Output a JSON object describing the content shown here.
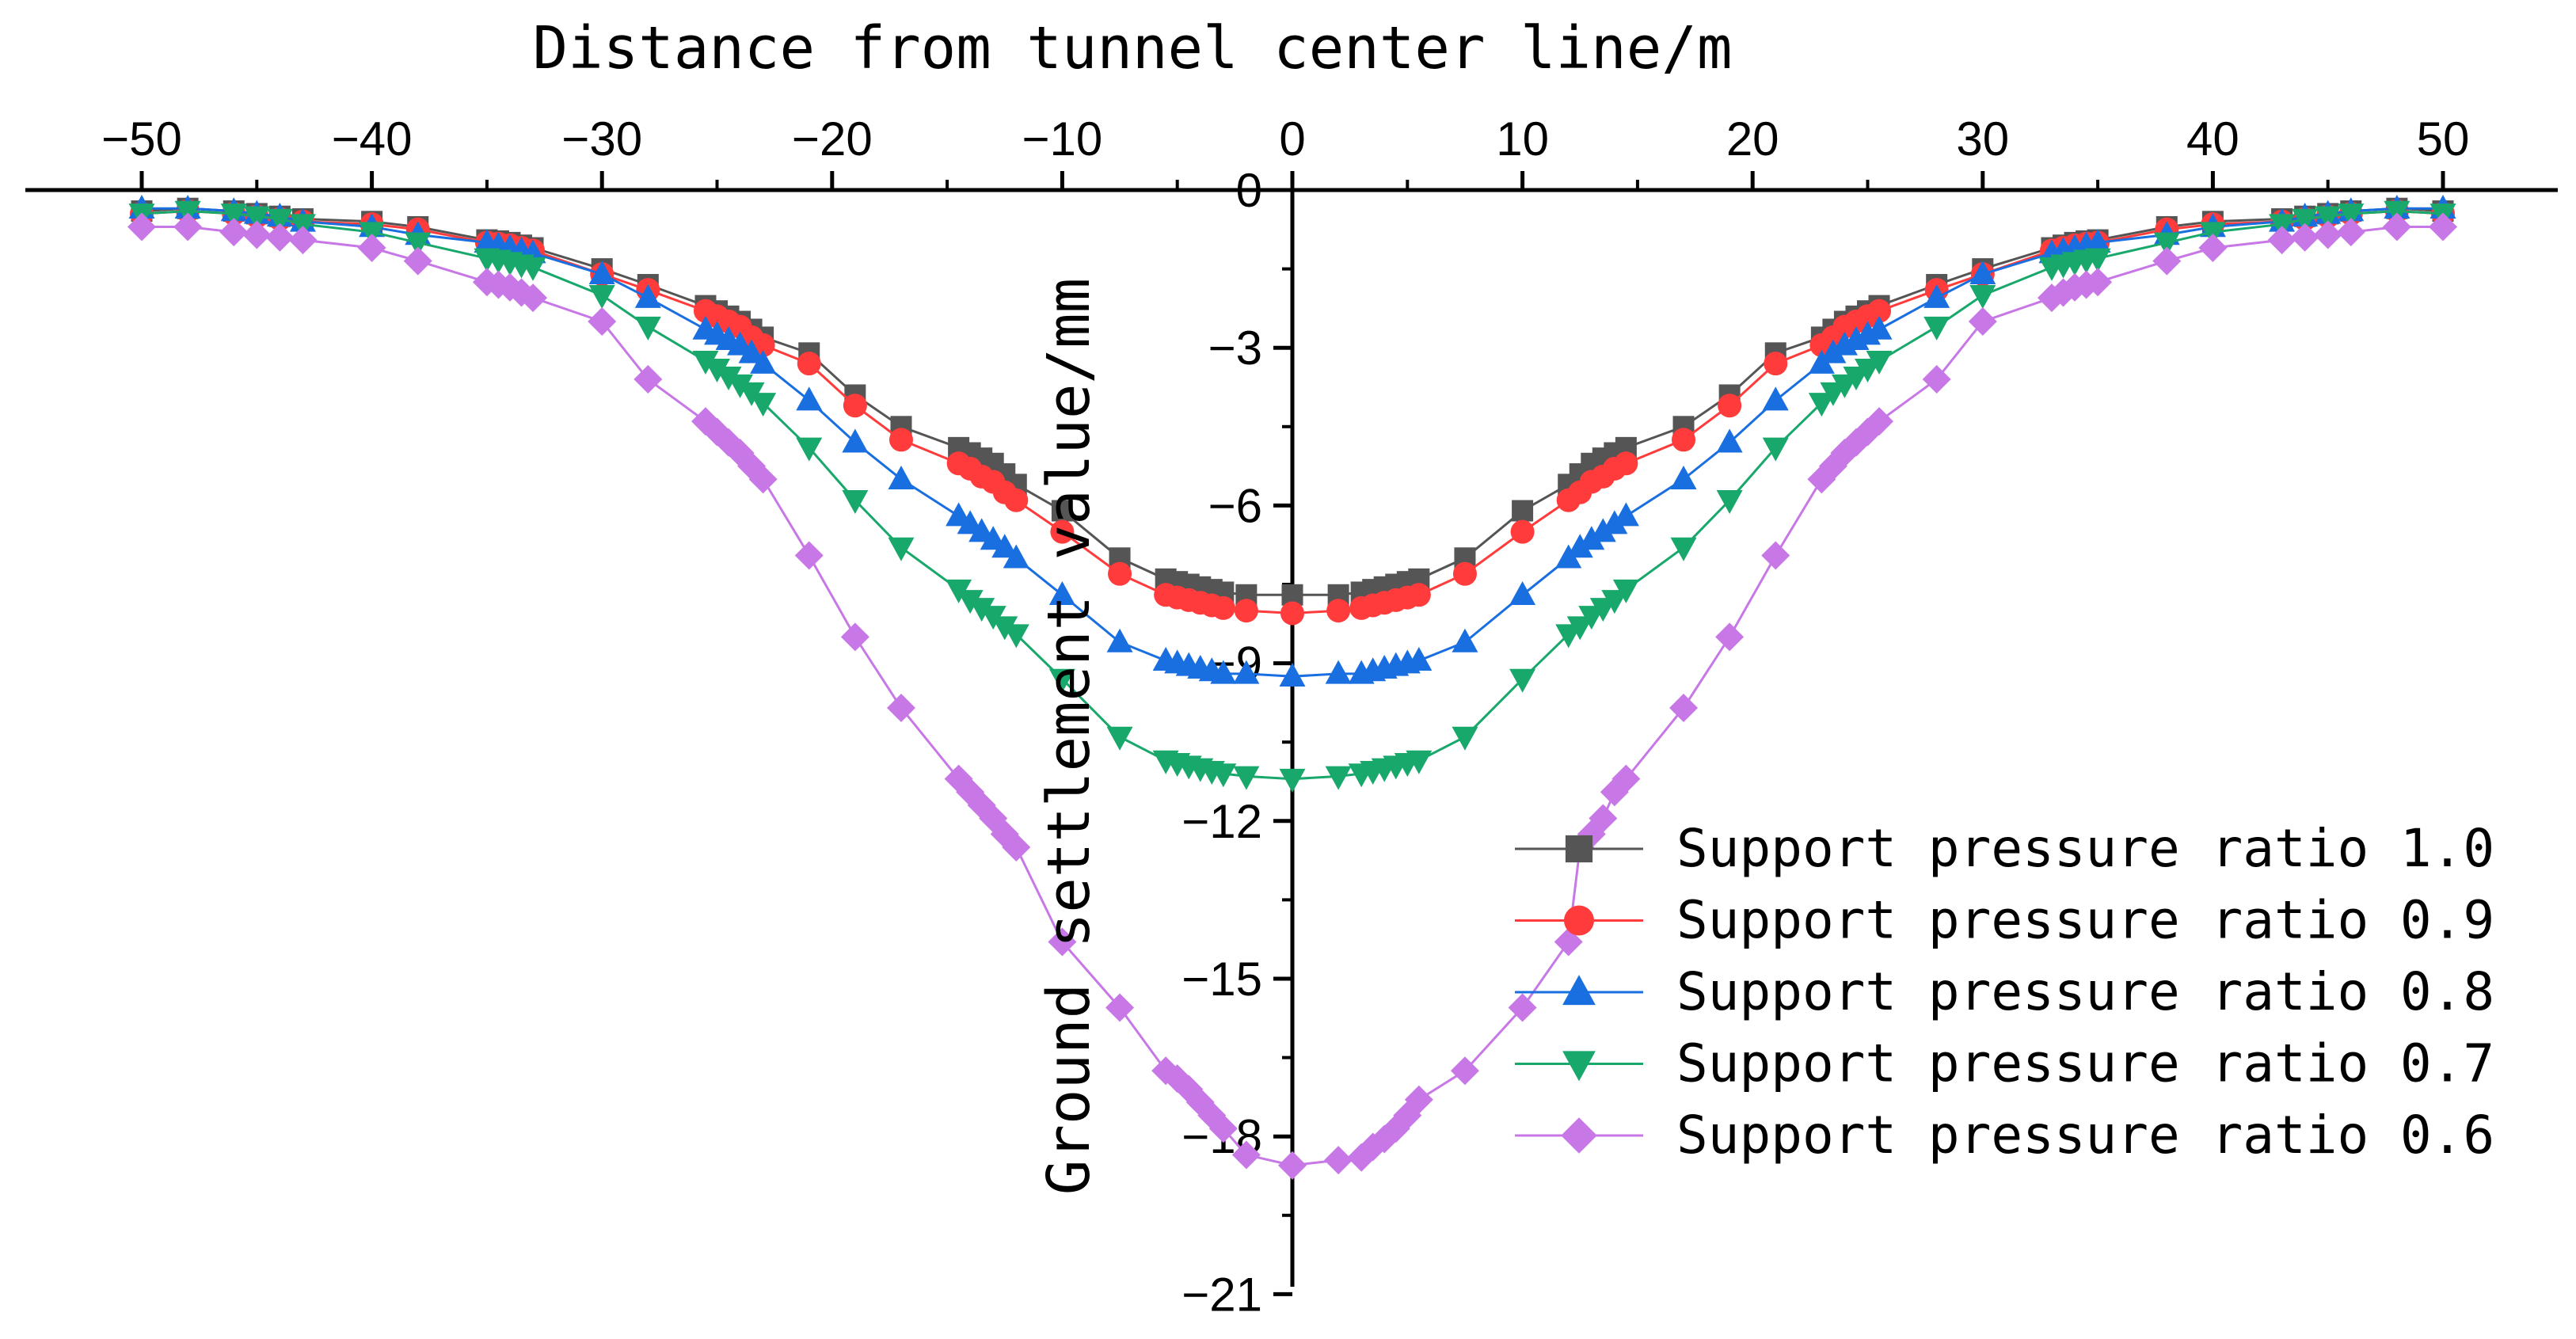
{
  "chart_data": {
    "type": "line",
    "xlabel": "Distance from tunnel center line/m",
    "ylabel": "Ground settlement value/mm",
    "xlim": [
      -55,
      55
    ],
    "ylim": [
      -21,
      0
    ],
    "x_ticks": [
      -50,
      -40,
      -30,
      -20,
      -10,
      0,
      10,
      20,
      30,
      40,
      50
    ],
    "x_tick_labels": [
      "−50",
      "−40",
      "−30",
      "−20",
      "−10",
      "0",
      "10",
      "20",
      "30",
      "40",
      "50"
    ],
    "y_ticks": [
      0,
      -3,
      -6,
      -9,
      -12,
      -15,
      -18,
      -21
    ],
    "y_tick_labels": [
      "0",
      "−3",
      "−6",
      "−9",
      "−12",
      "−15",
      "−18",
      "−21"
    ],
    "x_axis_position": "top",
    "y_axis_position": "center (x = 0)",
    "legend_position": "bottom-right",
    "grid": false,
    "x": [
      -50,
      -48,
      -46,
      -45,
      -44,
      -43,
      -40,
      -38,
      -35,
      -34.5,
      -34,
      -33.5,
      -33,
      -30,
      -28,
      -25.5,
      -25,
      -24.5,
      -24,
      -23.5,
      -23,
      -21,
      -19,
      -17,
      -14.5,
      -14,
      -13.5,
      -13,
      -12.5,
      -12,
      -10,
      -7.5,
      -5.5,
      -5,
      -4.5,
      -4,
      -3.5,
      -3,
      -2,
      0,
      2,
      3,
      3.5,
      4,
      4.5,
      5,
      5.5,
      7.5,
      10,
      12,
      12.5,
      13,
      13.5,
      14,
      14.5,
      17,
      19,
      21,
      23,
      23.5,
      24,
      24.5,
      25,
      25.5,
      28,
      30,
      33,
      33.5,
      34,
      34.5,
      35,
      38,
      40,
      43,
      44,
      45,
      46,
      48,
      50
    ],
    "series": [
      {
        "name": "Support pressure ratio 1.0",
        "color": "#555555",
        "marker": "square",
        "values": [
          -0.4,
          -0.35,
          -0.4,
          -0.45,
          -0.5,
          -0.55,
          -0.6,
          -0.7,
          -0.95,
          -0.97,
          -1.0,
          -1.05,
          -1.1,
          -1.5,
          -1.8,
          -2.2,
          -2.3,
          -2.4,
          -2.5,
          -2.65,
          -2.8,
          -3.1,
          -3.9,
          -4.5,
          -4.9,
          -5.0,
          -5.1,
          -5.2,
          -5.4,
          -5.6,
          -6.1,
          -7.0,
          -7.4,
          -7.45,
          -7.5,
          -7.55,
          -7.6,
          -7.65,
          -7.7,
          -7.7,
          -7.7,
          -7.65,
          -7.6,
          -7.55,
          -7.5,
          -7.45,
          -7.4,
          -7.0,
          -6.1,
          -5.6,
          -5.4,
          -5.2,
          -5.1,
          -5.0,
          -4.9,
          -4.5,
          -3.9,
          -3.1,
          -2.8,
          -2.65,
          -2.5,
          -2.4,
          -2.3,
          -2.2,
          -1.8,
          -1.5,
          -1.1,
          -1.05,
          -1.0,
          -0.97,
          -0.95,
          -0.7,
          -0.6,
          -0.55,
          -0.5,
          -0.45,
          -0.4,
          -0.35,
          -0.4
        ]
      },
      {
        "name": "Support pressure ratio 0.9",
        "color": "#FF3B3B",
        "marker": "circle",
        "values": [
          -0.45,
          -0.4,
          -0.45,
          -0.5,
          -0.55,
          -0.6,
          -0.65,
          -0.75,
          -1.0,
          -1.02,
          -1.05,
          -1.1,
          -1.15,
          -1.6,
          -1.9,
          -2.3,
          -2.4,
          -2.5,
          -2.6,
          -2.8,
          -2.95,
          -3.3,
          -4.1,
          -4.75,
          -5.2,
          -5.3,
          -5.45,
          -5.55,
          -5.75,
          -5.9,
          -6.5,
          -7.3,
          -7.7,
          -7.75,
          -7.8,
          -7.85,
          -7.9,
          -7.95,
          -8.0,
          -8.05,
          -8.0,
          -7.95,
          -7.9,
          -7.85,
          -7.8,
          -7.75,
          -7.7,
          -7.3,
          -6.5,
          -5.9,
          -5.75,
          -5.55,
          -5.45,
          -5.3,
          -5.2,
          -4.75,
          -4.1,
          -3.3,
          -2.95,
          -2.8,
          -2.6,
          -2.5,
          -2.4,
          -2.3,
          -1.9,
          -1.6,
          -1.15,
          -1.1,
          -1.05,
          -1.02,
          -1.0,
          -0.75,
          -0.65,
          -0.6,
          -0.55,
          -0.5,
          -0.45,
          -0.4,
          -0.45
        ]
      },
      {
        "name": "Support pressure ratio 0.8",
        "color": "#1A6FE0",
        "marker": "triangle-up",
        "values": [
          -0.35,
          -0.35,
          -0.4,
          -0.45,
          -0.5,
          -0.6,
          -0.7,
          -0.85,
          -1.0,
          -1.05,
          -1.1,
          -1.15,
          -1.2,
          -1.6,
          -2.05,
          -2.65,
          -2.75,
          -2.85,
          -2.95,
          -3.1,
          -3.3,
          -4.0,
          -4.8,
          -5.5,
          -6.2,
          -6.35,
          -6.5,
          -6.65,
          -6.8,
          -7.0,
          -7.7,
          -8.6,
          -8.95,
          -9.0,
          -9.05,
          -9.1,
          -9.15,
          -9.2,
          -9.2,
          -9.25,
          -9.2,
          -9.2,
          -9.15,
          -9.1,
          -9.05,
          -9.0,
          -8.95,
          -8.6,
          -7.7,
          -7.0,
          -6.8,
          -6.65,
          -6.5,
          -6.35,
          -6.2,
          -5.5,
          -4.8,
          -4.0,
          -3.3,
          -3.1,
          -2.95,
          -2.85,
          -2.75,
          -2.65,
          -2.05,
          -1.6,
          -1.2,
          -1.15,
          -1.1,
          -1.05,
          -1.0,
          -0.85,
          -0.7,
          -0.6,
          -0.5,
          -0.45,
          -0.4,
          -0.35,
          -0.35
        ]
      },
      {
        "name": "Support pressure ratio 0.7",
        "color": "#18A86B",
        "marker": "triangle-down",
        "values": [
          -0.45,
          -0.4,
          -0.45,
          -0.5,
          -0.55,
          -0.65,
          -0.8,
          -1.0,
          -1.3,
          -1.33,
          -1.37,
          -1.42,
          -1.47,
          -2.0,
          -2.6,
          -3.25,
          -3.4,
          -3.55,
          -3.7,
          -3.85,
          -4.05,
          -4.9,
          -5.9,
          -6.8,
          -7.6,
          -7.8,
          -7.95,
          -8.1,
          -8.3,
          -8.45,
          -9.3,
          -10.4,
          -10.85,
          -10.9,
          -10.95,
          -11.0,
          -11.05,
          -11.1,
          -11.15,
          -11.2,
          -11.15,
          -11.1,
          -11.05,
          -11.0,
          -10.95,
          -10.9,
          -10.85,
          -10.4,
          -9.3,
          -8.45,
          -8.3,
          -8.1,
          -7.95,
          -7.8,
          -7.6,
          -6.8,
          -5.9,
          -4.9,
          -4.05,
          -3.85,
          -3.7,
          -3.55,
          -3.4,
          -3.25,
          -2.6,
          -2.0,
          -1.47,
          -1.42,
          -1.37,
          -1.33,
          -1.3,
          -1.0,
          -0.8,
          -0.65,
          -0.55,
          -0.5,
          -0.45,
          -0.4,
          -0.45
        ]
      },
      {
        "name": "Support pressure ratio 0.6",
        "color": "#C878E6",
        "marker": "diamond",
        "values": [
          -0.7,
          -0.7,
          -0.8,
          -0.85,
          -0.9,
          -0.95,
          -1.1,
          -1.35,
          -1.75,
          -1.8,
          -1.85,
          -1.95,
          -2.05,
          -2.5,
          -3.6,
          -4.4,
          -4.6,
          -4.8,
          -5.0,
          -5.25,
          -5.5,
          -6.95,
          -8.5,
          -9.85,
          -11.2,
          -11.45,
          -11.7,
          -11.95,
          -12.25,
          -12.5,
          -14.3,
          -15.55,
          -16.75,
          -16.9,
          -17.1,
          -17.35,
          -17.6,
          -17.85,
          -18.35,
          -18.55,
          -18.45,
          -18.4,
          -18.2,
          -18.05,
          -17.85,
          -17.6,
          -17.3,
          -16.75,
          -15.55,
          -14.3,
          -12.5,
          -12.25,
          -11.95,
          -11.45,
          -11.2,
          -9.85,
          -8.5,
          -6.95,
          -5.5,
          -5.25,
          -5.0,
          -4.8,
          -4.6,
          -4.4,
          -3.6,
          -2.5,
          -2.05,
          -1.95,
          -1.85,
          -1.8,
          -1.75,
          -1.35,
          -1.1,
          -0.95,
          -0.9,
          -0.85,
          -0.8,
          -0.7,
          -0.7
        ]
      }
    ]
  }
}
